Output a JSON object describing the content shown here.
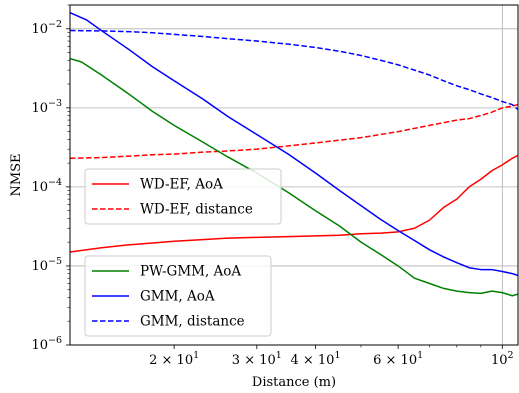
{
  "chart_data": {
    "type": "line",
    "title": "",
    "xlabel": "Distance (m)",
    "ylabel": "NMSE",
    "xscale": "log",
    "yscale": "log",
    "xlim": [
      12,
      108
    ],
    "ylim": [
      1e-06,
      0.02
    ],
    "grid": "both",
    "x_ticks": [
      {
        "value": 20,
        "label": "2 × 10",
        "exp": "1"
      },
      {
        "value": 30,
        "label": "3 × 10",
        "exp": "1"
      },
      {
        "value": 40,
        "label": "4 × 10",
        "exp": "1"
      },
      {
        "value": 60,
        "label": "6 × 10",
        "exp": "1"
      },
      {
        "value": 100,
        "label": "10",
        "exp": "2"
      }
    ],
    "y_ticks": [
      {
        "value": 1e-06,
        "label": "10",
        "exp": "−6"
      },
      {
        "value": 1e-05,
        "label": "10",
        "exp": "−5"
      },
      {
        "value": 0.0001,
        "label": "10",
        "exp": "−4"
      },
      {
        "value": 0.001,
        "label": "10",
        "exp": "−3"
      },
      {
        "value": 0.01,
        "label": "10",
        "exp": "−2"
      }
    ],
    "legends": [
      {
        "placement": "center-left",
        "entries": [
          0,
          1
        ]
      },
      {
        "placement": "lower-left",
        "entries": [
          2,
          3,
          4
        ]
      }
    ],
    "series": [
      {
        "name": "WD-EF, AoA",
        "color": "#ff0000",
        "dash": "solid",
        "x": [
          12,
          14,
          16,
          18,
          20,
          23,
          26,
          30,
          35,
          40,
          45,
          50,
          55,
          60,
          65,
          70,
          75,
          80,
          85,
          90,
          95,
          100,
          105,
          108
        ],
        "y": [
          1.5e-05,
          1.7e-05,
          1.85e-05,
          1.95e-05,
          2.05e-05,
          2.15e-05,
          2.25e-05,
          2.3e-05,
          2.35e-05,
          2.4e-05,
          2.45e-05,
          2.55e-05,
          2.6e-05,
          2.7e-05,
          3e-05,
          3.8e-05,
          5.5e-05,
          7e-05,
          0.0001,
          0.000125,
          0.00016,
          0.00019,
          0.00023,
          0.00025
        ]
      },
      {
        "name": "WD-EF, distance",
        "color": "#ff0000",
        "dash": "dashed",
        "x": [
          12,
          14,
          16,
          18,
          20,
          23,
          26,
          30,
          35,
          40,
          45,
          50,
          55,
          60,
          65,
          70,
          75,
          80,
          85,
          90,
          95,
          100,
          105,
          108
        ],
        "y": [
          0.00023,
          0.000235,
          0.000245,
          0.000255,
          0.00026,
          0.000275,
          0.000285,
          0.0003,
          0.00033,
          0.00036,
          0.00039,
          0.00042,
          0.00046,
          0.0005,
          0.00055,
          0.0006,
          0.00065,
          0.0007,
          0.00073,
          0.0008,
          0.00088,
          0.001,
          0.00105,
          0.0011
        ]
      },
      {
        "name": "PW-GMM, AoA",
        "color": "#008000",
        "dash": "solid",
        "x": [
          12,
          12.7,
          14,
          16,
          18,
          20,
          23,
          26,
          30,
          35,
          40,
          45,
          50,
          55,
          60,
          65,
          70,
          75,
          80,
          85,
          90,
          95,
          100,
          105,
          108
        ],
        "y": [
          0.0042,
          0.0038,
          0.0026,
          0.0015,
          0.0009,
          0.0006,
          0.00037,
          0.00024,
          0.00015,
          8.5e-05,
          5e-05,
          3.2e-05,
          2e-05,
          1.4e-05,
          1e-05,
          7e-06,
          6e-06,
          5.2e-06,
          4.8e-06,
          4.6e-06,
          4.5e-06,
          4.8e-06,
          4.6e-06,
          4.2e-06,
          4.4e-06
        ]
      },
      {
        "name": "GMM, AoA",
        "color": "#0000ff",
        "dash": "solid",
        "x": [
          12,
          13,
          14,
          16,
          18,
          20,
          23,
          26,
          30,
          35,
          40,
          45,
          50,
          55,
          60,
          65,
          70,
          75,
          80,
          85,
          90,
          95,
          100,
          105,
          108
        ],
        "y": [
          0.016,
          0.013,
          0.0095,
          0.0055,
          0.0033,
          0.0022,
          0.0013,
          0.00078,
          0.00046,
          0.00026,
          0.00015,
          9e-05,
          5.8e-05,
          3.9e-05,
          2.8e-05,
          2.1e-05,
          1.6e-05,
          1.3e-05,
          1.1e-05,
          9.5e-06,
          9e-06,
          9e-06,
          8.5e-06,
          8e-06,
          7.6e-06
        ]
      },
      {
        "name": "GMM, distance",
        "color": "#0000ff",
        "dash": "dashed",
        "x": [
          12,
          14,
          16,
          18,
          20,
          23,
          26,
          30,
          35,
          40,
          45,
          50,
          55,
          60,
          65,
          70,
          75,
          80,
          85,
          90,
          95,
          100,
          105,
          108
        ],
        "y": [
          0.0095,
          0.0094,
          0.0092,
          0.0089,
          0.0085,
          0.008,
          0.0075,
          0.007,
          0.0064,
          0.0058,
          0.0052,
          0.0046,
          0.004,
          0.0035,
          0.003,
          0.0026,
          0.0022,
          0.0019,
          0.0017,
          0.0015,
          0.00135,
          0.0012,
          0.0011,
          0.00095
        ]
      }
    ]
  }
}
